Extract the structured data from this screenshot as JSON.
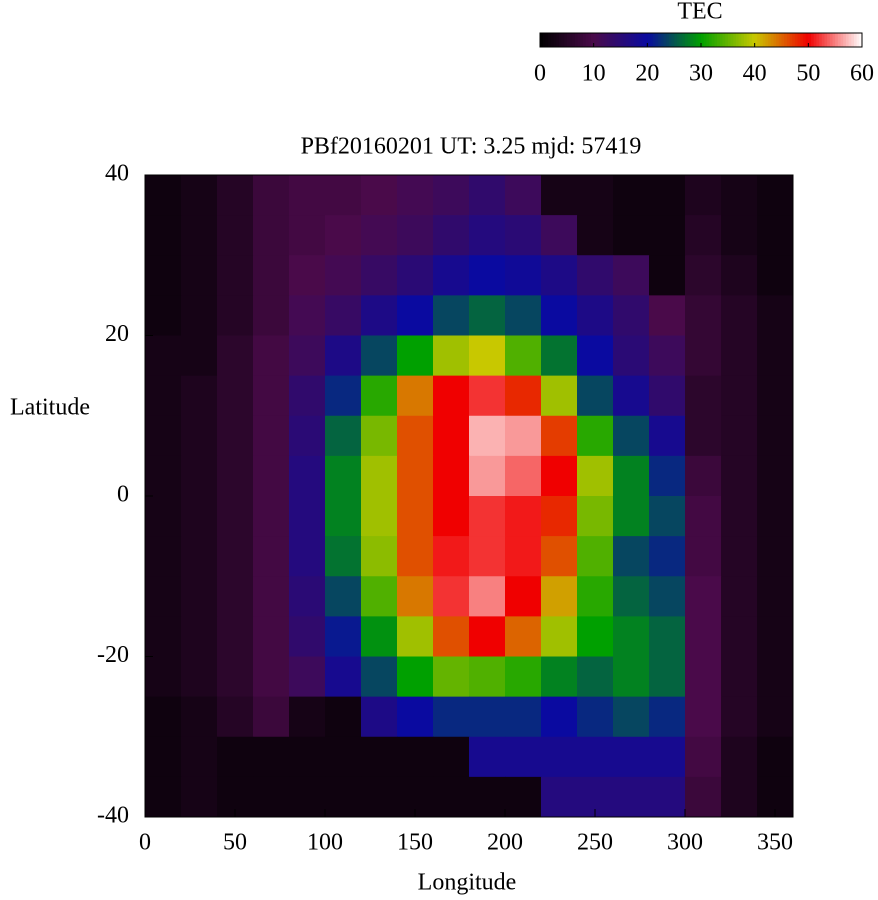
{
  "chart_data": {
    "type": "heatmap",
    "title": "PBf20160201  UT: 3.25  mjd: 57419",
    "xlabel": "Longitude",
    "ylabel": "Latitude",
    "xlim": [
      0,
      360
    ],
    "xticks": [
      0,
      50,
      100,
      150,
      200,
      250,
      300,
      350
    ],
    "ylim": [
      -40,
      40
    ],
    "yticks": [
      -40,
      -20,
      0,
      20,
      40
    ],
    "x": [
      10,
      30,
      50,
      70,
      90,
      110,
      130,
      150,
      170,
      190,
      210,
      230,
      250,
      270,
      290,
      310,
      330,
      350
    ],
    "y": [
      37.5,
      32.5,
      27.5,
      22.5,
      17.5,
      12.5,
      7.5,
      2.5,
      -2.5,
      -7.5,
      -12.5,
      -17.5,
      -22.5,
      -27.5,
      -32.5,
      -37.5
    ],
    "z": [
      [
        2,
        3,
        5,
        8,
        9,
        9,
        10,
        11,
        12,
        14,
        12,
        3,
        3,
        2,
        2,
        4,
        3,
        2
      ],
      [
        2,
        3,
        5,
        8,
        9,
        10,
        11,
        12,
        14,
        16,
        15,
        12,
        3,
        2,
        2,
        5,
        3,
        2
      ],
      [
        2,
        3,
        5,
        8,
        10,
        11,
        13,
        15,
        18,
        20,
        19,
        17,
        14,
        12,
        2,
        6,
        4,
        2
      ],
      [
        2,
        3,
        5,
        8,
        11,
        13,
        17,
        20,
        24,
        26,
        24,
        20,
        17,
        14,
        10,
        7,
        5,
        3
      ],
      [
        3,
        3,
        6,
        9,
        12,
        17,
        24,
        30,
        38,
        40,
        34,
        27,
        20,
        15,
        12,
        7,
        5,
        3
      ],
      [
        3,
        4,
        6,
        9,
        14,
        22,
        32,
        44,
        50,
        52,
        48,
        38,
        24,
        18,
        14,
        6,
        5,
        3
      ],
      [
        3,
        4,
        6,
        9,
        15,
        26,
        36,
        46,
        50,
        57,
        56,
        47,
        32,
        24,
        18,
        6,
        5,
        3
      ],
      [
        3,
        4,
        6,
        9,
        16,
        28,
        38,
        46,
        50,
        56,
        54,
        50,
        38,
        28,
        22,
        8,
        5,
        3
      ],
      [
        3,
        4,
        6,
        9,
        16,
        28,
        38,
        46,
        50,
        52,
        51,
        48,
        36,
        28,
        24,
        9,
        5,
        3
      ],
      [
        3,
        4,
        6,
        9,
        16,
        27,
        37,
        46,
        51,
        52,
        51,
        46,
        34,
        24,
        22,
        9,
        5,
        3
      ],
      [
        3,
        4,
        6,
        9,
        15,
        24,
        34,
        44,
        52,
        55,
        50,
        42,
        32,
        26,
        24,
        10,
        5,
        3
      ],
      [
        3,
        4,
        6,
        9,
        14,
        21,
        29,
        38,
        46,
        50,
        45,
        38,
        30,
        28,
        26,
        10,
        5,
        3
      ],
      [
        3,
        4,
        6,
        9,
        12,
        18,
        24,
        30,
        35,
        34,
        32,
        28,
        26,
        28,
        26,
        10,
        5,
        3
      ],
      [
        2,
        3,
        5,
        8,
        3,
        2,
        17,
        20,
        22,
        22,
        22,
        20,
        22,
        24,
        22,
        10,
        5,
        3
      ],
      [
        2,
        3,
        2,
        2,
        2,
        2,
        2,
        2,
        2,
        18,
        18,
        18,
        18,
        18,
        18,
        9,
        4,
        2
      ],
      [
        2,
        3,
        2,
        2,
        2,
        2,
        2,
        2,
        2,
        2,
        2,
        16,
        16,
        16,
        16,
        8,
        4,
        2
      ]
    ],
    "colorscale": [
      "#000000",
      "#4a0a4a",
      "#0a0aa0",
      "#00a000",
      "#c8c800",
      "#f00000",
      "#ffffff"
    ],
    "colorbar": {
      "title": "TEC",
      "lim": [
        0,
        60
      ],
      "ticks": [
        0,
        10,
        20,
        30,
        40,
        50,
        60
      ]
    }
  }
}
